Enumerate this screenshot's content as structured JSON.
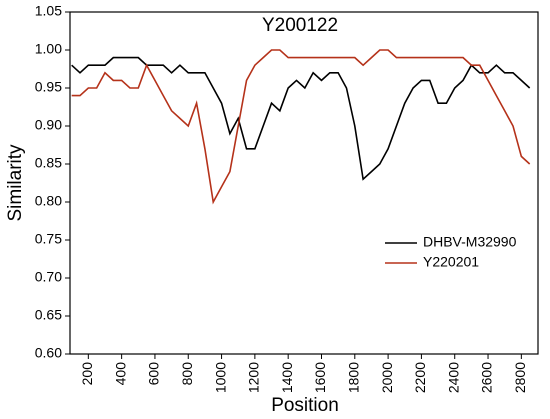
{
  "chart_data": {
    "type": "line",
    "title": "Y200122",
    "x_label": "Position",
    "y_label": "Similarity",
    "x": [
      100,
      150,
      200,
      250,
      300,
      350,
      400,
      450,
      500,
      550,
      600,
      650,
      700,
      750,
      800,
      850,
      900,
      950,
      1000,
      1050,
      1100,
      1150,
      1200,
      1250,
      1300,
      1350,
      1400,
      1450,
      1500,
      1550,
      1600,
      1650,
      1700,
      1750,
      1800,
      1850,
      1900,
      1950,
      2000,
      2050,
      2100,
      2150,
      2200,
      2250,
      2300,
      2350,
      2400,
      2450,
      2500,
      2550,
      2600,
      2650,
      2700,
      2750,
      2800,
      2850
    ],
    "series": [
      {
        "name": "DHBV-M32990",
        "color": "#000000",
        "values": [
          0.98,
          0.97,
          0.98,
          0.98,
          0.98,
          0.99,
          0.99,
          0.99,
          0.99,
          0.98,
          0.98,
          0.98,
          0.97,
          0.98,
          0.97,
          0.97,
          0.97,
          0.95,
          0.93,
          0.89,
          0.91,
          0.87,
          0.87,
          0.9,
          0.93,
          0.92,
          0.95,
          0.96,
          0.95,
          0.97,
          0.96,
          0.97,
          0.97,
          0.95,
          0.9,
          0.83,
          0.84,
          0.85,
          0.87,
          0.9,
          0.93,
          0.95,
          0.96,
          0.96,
          0.93,
          0.93,
          0.95,
          0.96,
          0.98,
          0.97,
          0.97,
          0.98,
          0.97,
          0.97,
          0.96,
          0.95
        ]
      },
      {
        "name": "Y220201",
        "color": "#b5321a",
        "values": [
          0.94,
          0.94,
          0.95,
          0.95,
          0.97,
          0.96,
          0.96,
          0.95,
          0.95,
          0.98,
          0.96,
          0.94,
          0.92,
          0.91,
          0.9,
          0.93,
          0.87,
          0.8,
          0.82,
          0.84,
          0.9,
          0.96,
          0.98,
          0.99,
          1.0,
          1.0,
          0.99,
          0.99,
          0.99,
          0.99,
          0.99,
          0.99,
          0.99,
          0.99,
          0.99,
          0.98,
          0.99,
          1.0,
          1.0,
          0.99,
          0.99,
          0.99,
          0.99,
          0.99,
          0.99,
          0.99,
          0.99,
          0.99,
          0.98,
          0.98,
          0.96,
          0.94,
          0.92,
          0.9,
          0.86,
          0.85
        ]
      }
    ],
    "xlim": [
      90,
      2900
    ],
    "ylim": [
      0.6,
      1.05
    ],
    "xticks": [
      200,
      400,
      600,
      800,
      1000,
      1200,
      1400,
      1600,
      1800,
      2000,
      2200,
      2400,
      2600,
      2800
    ],
    "yticks": [
      {
        "value": 0.6,
        "label": "0.60"
      },
      {
        "value": 0.65,
        "label": "0.65"
      },
      {
        "value": 0.7,
        "label": "0.70"
      },
      {
        "value": 0.75,
        "label": "0.75"
      },
      {
        "value": 0.8,
        "label": "0.80"
      },
      {
        "value": 0.85,
        "label": "0.85"
      },
      {
        "value": 0.9,
        "label": "0.90"
      },
      {
        "value": 0.95,
        "label": "0.95"
      },
      {
        "value": 1.0,
        "label": "1.00"
      },
      {
        "value": 1.05,
        "label": "1.05"
      }
    ],
    "grid": false,
    "legend_position": "right"
  }
}
